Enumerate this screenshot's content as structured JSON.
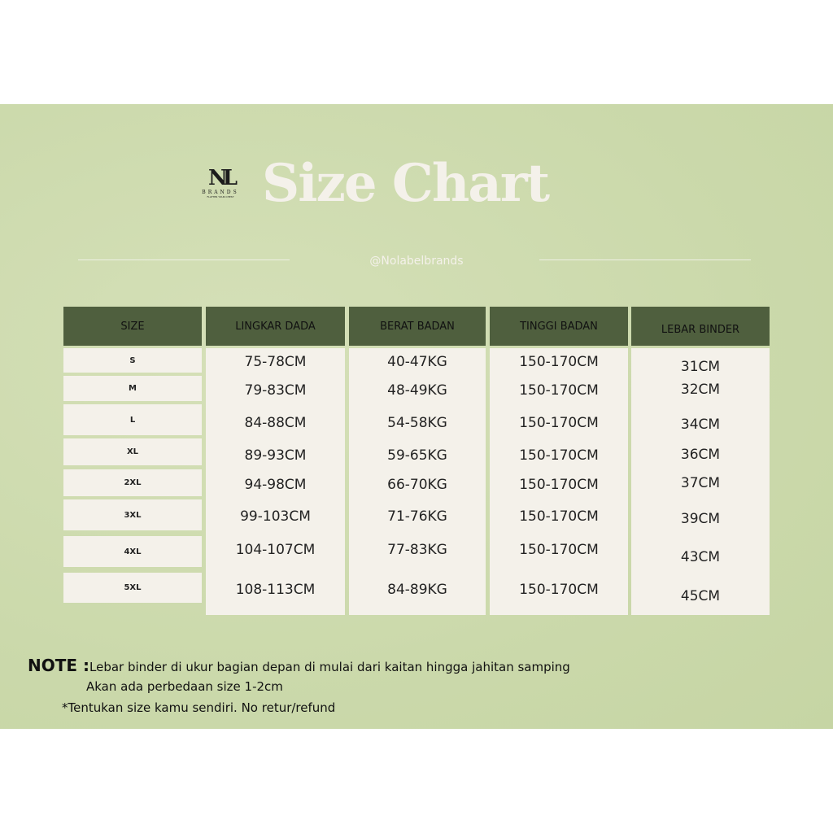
{
  "logo": {
    "mark": "NL",
    "name": "BRANDS",
    "tagline": "FLATTER YOUR CHEST"
  },
  "title": "Size Chart",
  "handle": "@Nolabelbrands",
  "colors": {
    "header": "#4f5f3e",
    "cell": "#f4f1ea",
    "background": "#cbd9ab"
  },
  "table": {
    "headers": [
      "SIZE",
      "LINGKAR DADA",
      "BERAT BADAN",
      "TINGGI BADAN",
      "LEBAR BINDER"
    ],
    "rows": [
      [
        "S",
        "75-78CM",
        "40-47KG",
        "150-170CM",
        "31CM"
      ],
      [
        "M",
        "79-83CM",
        "48-49KG",
        "150-170CM",
        "32CM"
      ],
      [
        "L",
        "84-88CM",
        "54-58KG",
        "150-170CM",
        "34CM"
      ],
      [
        "XL",
        "89-93CM",
        "59-65KG",
        "150-170CM",
        "36CM"
      ],
      [
        "2XL",
        "94-98CM",
        "66-70KG",
        "150-170CM",
        "37CM"
      ],
      [
        "3XL",
        "99-103CM",
        "71-76KG",
        "150-170CM",
        "39CM"
      ],
      [
        "4XL",
        "104-107CM",
        "77-83KG",
        "150-170CM",
        "43CM"
      ],
      [
        "5XL",
        "108-113CM",
        "84-89KG",
        "150-170CM",
        "45CM"
      ]
    ]
  },
  "note": {
    "label": "NOTE :",
    "line1": "Lebar binder di ukur  bagian depan di mulai dari kaitan hingga jahitan samping",
    "line2": "Akan ada perbedaan size 1-2cm",
    "line3": "*Tentukan size kamu sendiri. No retur/refund"
  }
}
